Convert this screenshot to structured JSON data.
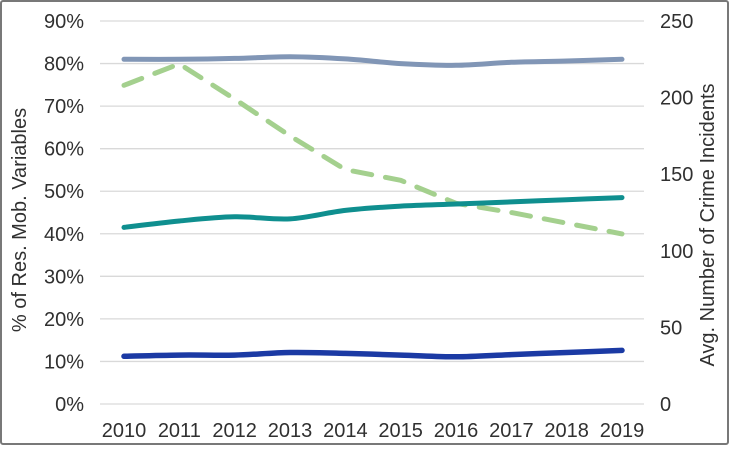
{
  "chart_data": {
    "type": "line",
    "title": "",
    "x": [
      2010,
      2011,
      2012,
      2013,
      2014,
      2015,
      2016,
      2017,
      2018,
      2019
    ],
    "ylabel_left": "% of Res. Mob. Variables",
    "ylabel_right": "Avg. Number of Crime Incidents",
    "left_axis": {
      "min": 0,
      "max": 90,
      "tick_step": 10,
      "tick_labels": [
        "0%",
        "10%",
        "20%",
        "30%",
        "40%",
        "50%",
        "60%",
        "70%",
        "80%",
        "90%"
      ]
    },
    "right_axis": {
      "min": 0,
      "max": 250,
      "tick_step": 50,
      "tick_labels": [
        "0",
        "50",
        "100",
        "150",
        "200",
        "250"
      ]
    },
    "grid": true,
    "legend": false,
    "series": [
      {
        "name": "green-dashed-line",
        "axis": "right",
        "style": "dashed",
        "color": "#a4d08e",
        "width": 5,
        "values": [
          208,
          222,
          199,
          175,
          153,
          146,
          131,
          125,
          118,
          111
        ]
      },
      {
        "name": "steel-blue-line",
        "axis": "left",
        "style": "solid",
        "color": "#8196b6",
        "width": 5,
        "values": [
          81,
          81,
          81.2,
          81.6,
          81.1,
          80,
          79.6,
          80.3,
          80.6,
          81
        ]
      },
      {
        "name": "teal-line",
        "axis": "left",
        "style": "solid",
        "color": "#0f8f8f",
        "width": 5,
        "values": [
          41.5,
          43,
          44,
          43.5,
          45.5,
          46.5,
          47,
          47.5,
          48,
          48.5
        ]
      },
      {
        "name": "navy-line",
        "axis": "left",
        "style": "solid",
        "color": "#1b3aa4",
        "width": 5.5,
        "values": [
          11.2,
          11.5,
          11.5,
          12.1,
          11.9,
          11.5,
          11.1,
          11.6,
          12.1,
          12.6
        ]
      }
    ]
  },
  "colors": {
    "grid": "#d9d9d9",
    "text": "#303030",
    "frame": "#787878",
    "background": "#ffffff"
  }
}
